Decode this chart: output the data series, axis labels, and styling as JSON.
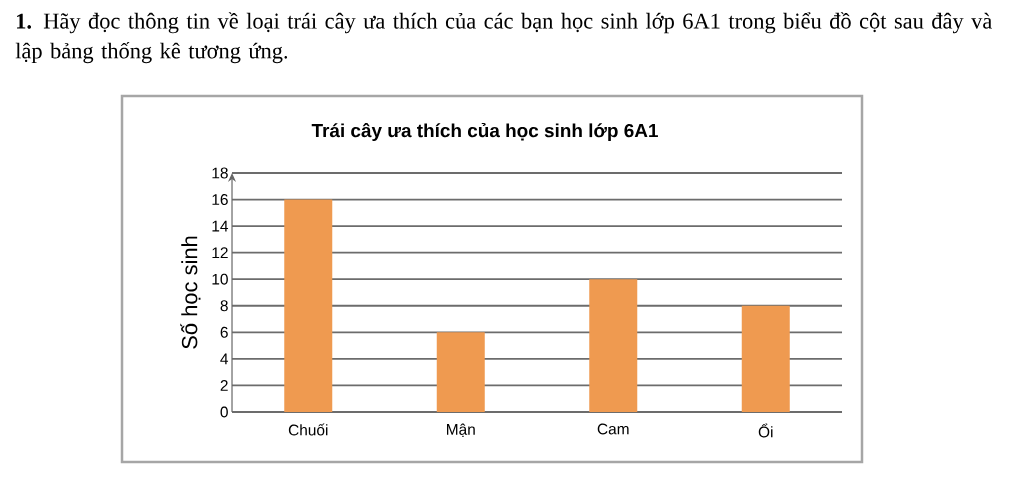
{
  "chart_data": {
    "type": "bar",
    "title": "Trái cây ưa thích của học sinh lớp 6A1",
    "ylabel": "Số học sinh",
    "annotations": [
      "**1.** Hãy đọc thông tin về loại trái cây ưa thích của các bạn học sinh lớp 6A1 trong biểu đồ cột sau đây và lập bảng thống kê tương ứng."
    ],
    "categories": [
      "Chuối",
      "Mận",
      "Cam",
      "Ổi"
    ],
    "values": [
      16,
      6,
      10,
      8
    ],
    "color": "#ef9a50",
    "ylim": [
      0,
      18
    ],
    "yticks": [
      0,
      2,
      4,
      6,
      8,
      10,
      12,
      14,
      16,
      18
    ],
    "grid": "y"
  }
}
